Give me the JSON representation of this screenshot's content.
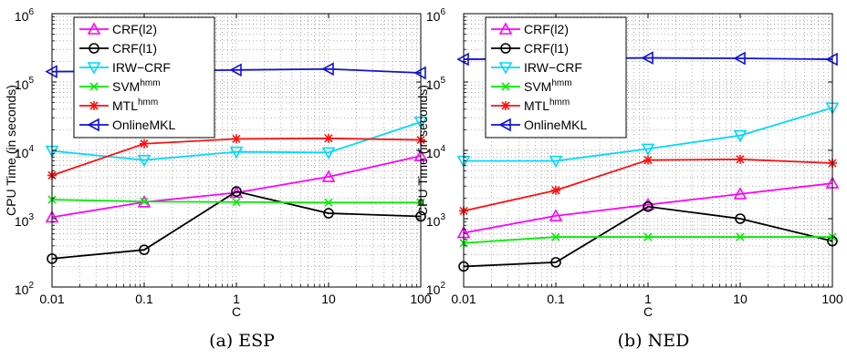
{
  "chart_data": [
    {
      "type": "line",
      "caption": "(a) ESP",
      "xlabel": "C",
      "ylabel": "CPU Time (in seconds)",
      "xscale": "log",
      "yscale": "log",
      "x": [
        0.01,
        0.1,
        1,
        10,
        100
      ],
      "xticks": [
        "0.01",
        "0.1",
        "1",
        "10",
        "100"
      ],
      "ylim": [
        100,
        1000000
      ],
      "yticks": [
        {
          "base": "10",
          "exp": "2"
        },
        {
          "base": "10",
          "exp": "3"
        },
        {
          "base": "10",
          "exp": "4"
        },
        {
          "base": "10",
          "exp": "5"
        },
        {
          "base": "10",
          "exp": "6"
        }
      ],
      "grid": true,
      "legend": "top-left",
      "series": [
        {
          "name": "CRF(l2)",
          "color": "#ff00ff",
          "marker": "triangle-up",
          "values": [
            1050,
            1750,
            2400,
            4100,
            8300
          ]
        },
        {
          "name": "CRF(l1)",
          "color": "#000000",
          "marker": "circle",
          "values": [
            260,
            350,
            2500,
            1200,
            1080
          ]
        },
        {
          "name": "IRW−CRF",
          "color": "#00d8ff",
          "marker": "triangle-down",
          "values": [
            9800,
            7200,
            9500,
            9300,
            26000
          ]
        },
        {
          "name": "SVM",
          "sup": "hmm",
          "color": "#00ee00",
          "marker": "x",
          "values": [
            1900,
            1780,
            1750,
            1720,
            1720
          ]
        },
        {
          "name": "MTL",
          "sup": "hmm",
          "color": "#ff1111",
          "marker": "asterisk",
          "values": [
            4300,
            12500,
            14700,
            15000,
            14200
          ]
        },
        {
          "name": "OnlineMKL",
          "color": "#1111dd",
          "marker": "triangle-left",
          "values": [
            142000,
            144000,
            150000,
            155000,
            136000
          ]
        }
      ]
    },
    {
      "type": "line",
      "caption": "(b) NED",
      "xlabel": "C",
      "ylabel": "CPU Time (in seconds)",
      "xscale": "log",
      "yscale": "log",
      "x": [
        0.01,
        0.1,
        1,
        10,
        100
      ],
      "xticks": [
        "0.01",
        "0.1",
        "1",
        "10",
        "100"
      ],
      "ylim": [
        100,
        1000000
      ],
      "yticks": [
        {
          "base": "10",
          "exp": "2"
        },
        {
          "base": "10",
          "exp": "3"
        },
        {
          "base": "10",
          "exp": "4"
        },
        {
          "base": "10",
          "exp": "5"
        },
        {
          "base": "10",
          "exp": "6"
        }
      ],
      "grid": true,
      "legend": "top-left",
      "series": [
        {
          "name": "CRF(l2)",
          "color": "#ff00ff",
          "marker": "triangle-up",
          "values": [
            620,
            1100,
            1600,
            2300,
            3300
          ]
        },
        {
          "name": "CRF(l1)",
          "color": "#000000",
          "marker": "circle",
          "values": [
            200,
            230,
            1500,
            1000,
            470
          ]
        },
        {
          "name": "IRW−CRF",
          "color": "#00d8ff",
          "marker": "triangle-down",
          "values": [
            7000,
            7000,
            10500,
            16500,
            42000
          ]
        },
        {
          "name": "SVM",
          "sup": "hmm",
          "color": "#00ee00",
          "marker": "x",
          "values": [
            440,
            540,
            540,
            540,
            540
          ]
        },
        {
          "name": "MTL",
          "sup": "hmm",
          "color": "#ff1111",
          "marker": "asterisk",
          "values": [
            1300,
            2600,
            7200,
            7400,
            6500
          ]
        },
        {
          "name": "OnlineMKL",
          "color": "#1111dd",
          "marker": "triangle-left",
          "values": [
            215000,
            220000,
            225000,
            222000,
            215000
          ]
        }
      ]
    }
  ]
}
